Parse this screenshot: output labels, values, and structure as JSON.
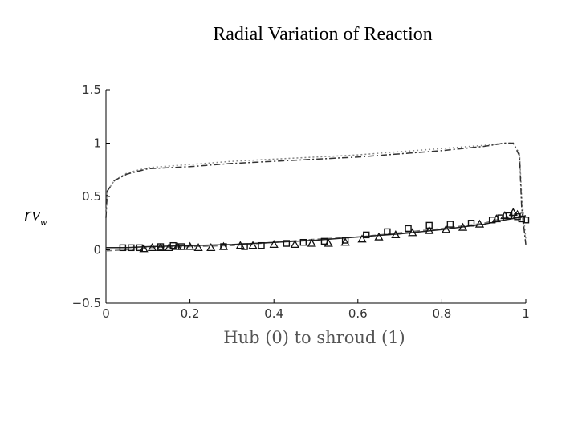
{
  "slide": {
    "title": "Radial Variation of Reaction",
    "side_label_main": "rv",
    "side_label_sub": "w"
  },
  "chart_data": {
    "type": "line",
    "title": "",
    "xlabel": "Hub (0) to shroud (1)",
    "ylabel": "",
    "xlim": [
      0,
      1
    ],
    "ylim": [
      -0.5,
      1.5
    ],
    "xticks": [
      0,
      0.2,
      0.4,
      0.6,
      0.8,
      1
    ],
    "yticks": [
      -0.5,
      0,
      0.5,
      1,
      1.5
    ],
    "xtick_labels": [
      "0",
      "0.2",
      "0.4",
      "0.6",
      "0.8",
      "1"
    ],
    "ytick_labels": [
      "−0.5",
      "0",
      "0.5",
      "1",
      "1.5"
    ],
    "series": [
      {
        "style": "dotted",
        "x": [
          0,
          0.003,
          0.02,
          0.05,
          0.1,
          0.2,
          0.3,
          0.4,
          0.5,
          0.6,
          0.7,
          0.8,
          0.9,
          0.95,
          0.97,
          0.985,
          0.99,
          1
        ],
        "y": [
          0.3,
          0.55,
          0.65,
          0.72,
          0.77,
          0.8,
          0.83,
          0.85,
          0.87,
          0.89,
          0.92,
          0.95,
          0.98,
          1.0,
          1.0,
          0.9,
          0.5,
          0.1
        ]
      },
      {
        "style": "dash-dot",
        "x": [
          0,
          0.003,
          0.02,
          0.05,
          0.1,
          0.2,
          0.3,
          0.4,
          0.5,
          0.6,
          0.7,
          0.8,
          0.9,
          0.95,
          0.97,
          0.985,
          0.99,
          1
        ],
        "y": [
          0.3,
          0.55,
          0.65,
          0.71,
          0.76,
          0.78,
          0.81,
          0.83,
          0.85,
          0.87,
          0.9,
          0.93,
          0.97,
          1.0,
          1.0,
          0.88,
          0.4,
          0.05
        ]
      },
      {
        "style": "dashed",
        "x": [
          0,
          0.05,
          0.1,
          0.2,
          0.3,
          0.4,
          0.5,
          0.6,
          0.7,
          0.8,
          0.9,
          0.95,
          0.98,
          1
        ],
        "y": [
          -0.01,
          0.0,
          0.02,
          0.03,
          0.04,
          0.07,
          0.1,
          0.12,
          0.16,
          0.2,
          0.25,
          0.3,
          0.33,
          0.36
        ]
      },
      {
        "style": "solid",
        "x": [
          0,
          0.05,
          0.1,
          0.2,
          0.3,
          0.4,
          0.5,
          0.6,
          0.7,
          0.8,
          0.9,
          0.95,
          0.98,
          1
        ],
        "y": [
          0.02,
          0.02,
          0.03,
          0.04,
          0.05,
          0.07,
          0.09,
          0.12,
          0.15,
          0.19,
          0.24,
          0.28,
          0.3,
          0.32
        ]
      }
    ],
    "markers_square": {
      "x": [
        0.04,
        0.06,
        0.08,
        0.13,
        0.16,
        0.18,
        0.28,
        0.33,
        0.37,
        0.43,
        0.47,
        0.52,
        0.57,
        0.62,
        0.67,
        0.72,
        0.77,
        0.82,
        0.87,
        0.92,
        0.94,
        0.96,
        0.98,
        0.99,
        1.0
      ],
      "y": [
        0.02,
        0.02,
        0.02,
        0.03,
        0.04,
        0.03,
        0.03,
        0.03,
        0.04,
        0.06,
        0.07,
        0.08,
        0.09,
        0.14,
        0.17,
        0.2,
        0.23,
        0.24,
        0.25,
        0.28,
        0.3,
        0.32,
        0.31,
        0.29,
        0.28
      ]
    },
    "markers_triangle": {
      "x": [
        0.09,
        0.11,
        0.13,
        0.15,
        0.17,
        0.2,
        0.22,
        0.25,
        0.28,
        0.32,
        0.35,
        0.4,
        0.45,
        0.49,
        0.53,
        0.57,
        0.61,
        0.65,
        0.69,
        0.73,
        0.77,
        0.81,
        0.85,
        0.89,
        0.93,
        0.95,
        0.97,
        0.98
      ],
      "y": [
        0.01,
        0.02,
        0.02,
        0.02,
        0.03,
        0.03,
        0.02,
        0.02,
        0.03,
        0.04,
        0.04,
        0.05,
        0.05,
        0.06,
        0.06,
        0.07,
        0.1,
        0.12,
        0.14,
        0.16,
        0.18,
        0.19,
        0.21,
        0.24,
        0.29,
        0.32,
        0.35,
        0.33
      ]
    }
  }
}
